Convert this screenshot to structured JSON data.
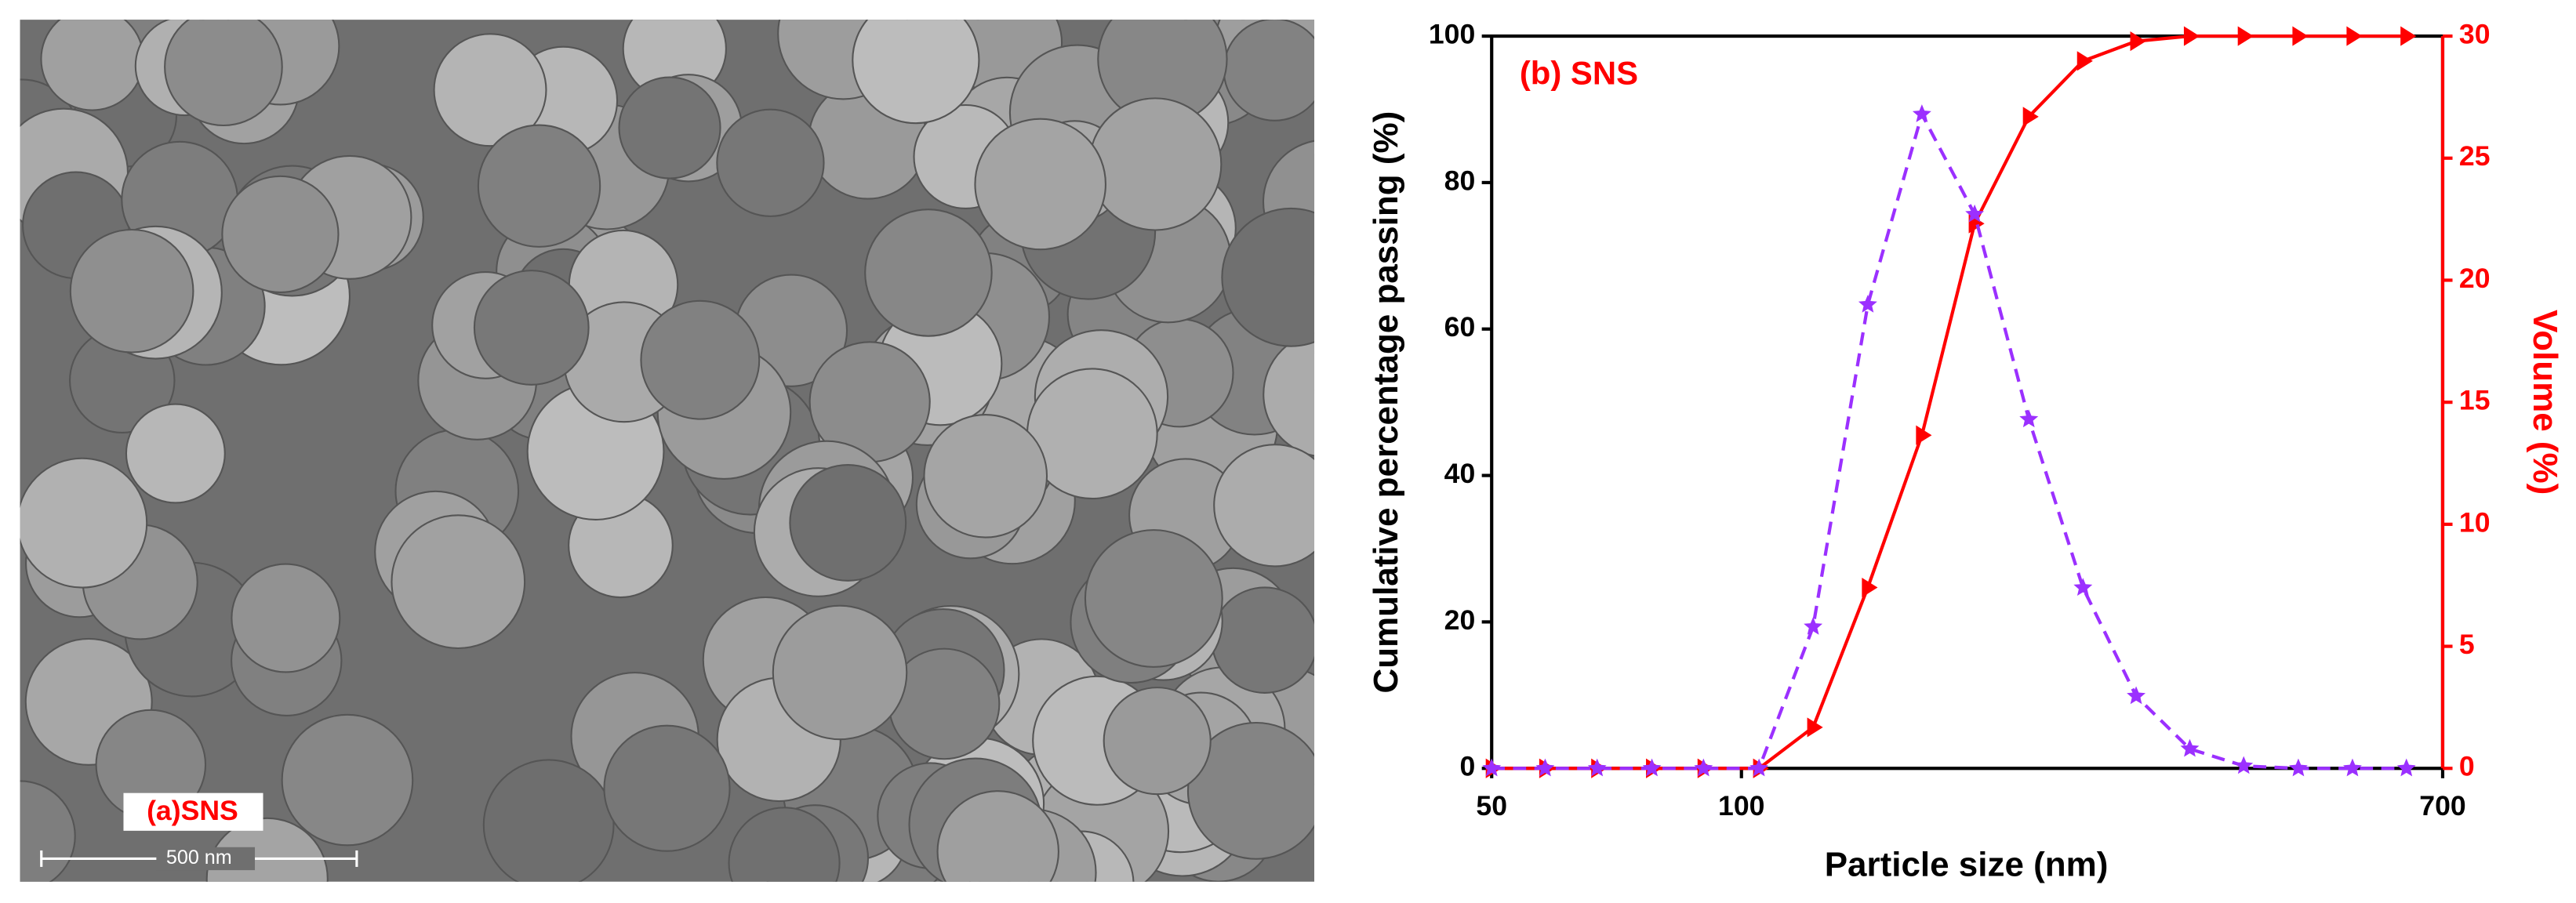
{
  "panel_a": {
    "label": "(a)SNS",
    "scale_bar": "500 nm"
  },
  "chart_data": {
    "type": "line",
    "annotation": "(b) SNS",
    "x_label": "Particle size (nm)",
    "y_label": "Cumulative percentage passing (%)",
    "y2_label": "Volume (%)",
    "x": [
      50,
      58,
      67,
      78,
      90,
      105,
      122,
      142,
      165,
      191,
      222,
      258,
      299,
      347,
      403,
      469,
      545,
      633
    ],
    "xlim": [
      50,
      700
    ],
    "xticks": [
      50,
      100,
      700
    ],
    "xscale": "log",
    "ylim": [
      0,
      100
    ],
    "yticks": [
      0,
      20,
      40,
      60,
      80,
      100
    ],
    "y2lim": [
      0,
      30
    ],
    "y2ticks": [
      0,
      5,
      10,
      15,
      20,
      25,
      30
    ],
    "series": [
      {
        "name": "Cumulative percentage passing",
        "color": "#ff0000",
        "marker": "triangle",
        "dashed": false,
        "values": [
          0,
          0,
          0,
          0,
          0,
          0,
          5.6,
          24.7,
          45.5,
          74.4,
          89,
          96.6,
          99.3,
          100,
          100,
          100,
          100,
          100
        ]
      },
      {
        "name": "Volume",
        "color": "#9b30ff",
        "marker": "star",
        "dashed": true,
        "axis": "y2",
        "values": [
          0,
          0,
          0,
          0,
          0,
          0,
          5.8,
          19.0,
          26.8,
          22.7,
          14.3,
          7.4,
          2.96,
          0.8,
          0.1,
          0,
          0,
          0
        ]
      }
    ]
  }
}
